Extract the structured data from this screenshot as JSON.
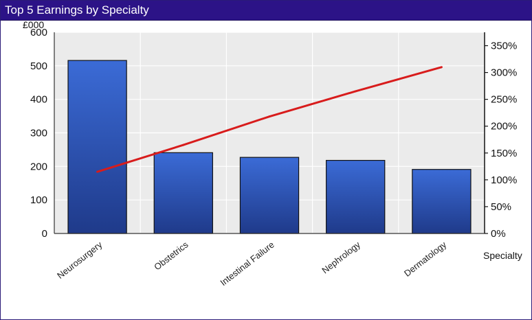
{
  "panel": {
    "title": "Top 5 Earnings by Specialty"
  },
  "colors": {
    "titlebar": "#2c1387",
    "plot_background": "#ebebeb",
    "bar_top": "#3b6bd6",
    "bar_bottom": "#1f3a8a",
    "line": "#d81c1c"
  },
  "chart_data": {
    "type": "bar",
    "categories": [
      "Neurosurgery",
      "Obstetrics",
      "Intestinal Failure",
      "Nephrology",
      "Dermatology"
    ],
    "series": [
      {
        "type": "bar",
        "axis": "left",
        "values": [
          516,
          241,
          227,
          218,
          191
        ]
      },
      {
        "type": "line",
        "axis": "right",
        "values": [
          115,
          165,
          218,
          265,
          310
        ]
      }
    ],
    "ylabel": "£000",
    "xlabel": "Specialty",
    "ylim": [
      0,
      600
    ],
    "y_ticks": [
      "0",
      "100",
      "200",
      "300",
      "400",
      "500",
      "600"
    ],
    "y2lim": [
      0,
      375
    ],
    "y2_ticks": [
      "0%",
      "50%",
      "100%",
      "150%",
      "200%",
      "250%",
      "300%",
      "350%"
    ],
    "grid": true,
    "legend": "none"
  }
}
